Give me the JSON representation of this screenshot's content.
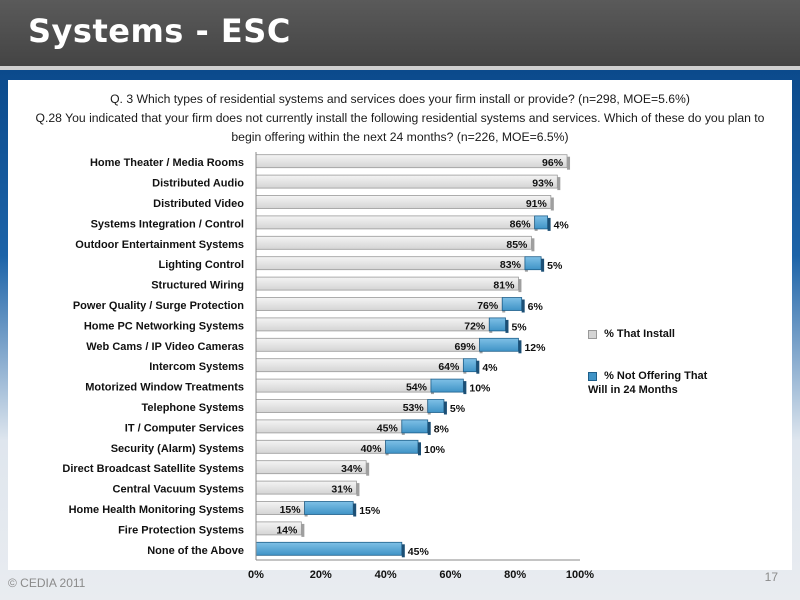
{
  "header": {
    "title": "Systems - ESC"
  },
  "questions": {
    "q3": "Q. 3 Which types of residential systems and services  does your firm install or provide? (n=298, MOE=5.6%)",
    "q28": "Q.28 You indicated that your firm does not currently install the following residential systems and services. Which of these do you plan to begin offering within the next 24 months? (n=226, MOE=6.5%)"
  },
  "footer": {
    "copyright": "© CEDIA 2011",
    "page": "17"
  },
  "colors": {
    "install": "#d4d4d4",
    "plan": "#3f93c6",
    "header": "#4a4a4a"
  },
  "chart_data": {
    "type": "bar",
    "orientation": "horizontal",
    "stacked": true,
    "categories": [
      "Home Theater / Media Rooms",
      "Distributed Audio",
      "Distributed Video",
      "Systems Integration / Control",
      "Outdoor Entertainment Systems",
      "Lighting Control",
      "Structured Wiring",
      "Power Quality / Surge Protection",
      "Home PC Networking Systems",
      "Web Cams / IP Video Cameras",
      "Intercom Systems",
      "Motorized Window Treatments",
      "Telephone Systems",
      "IT / Computer Services",
      "Security (Alarm) Systems",
      "Direct Broadcast Satellite Systems",
      "Central Vacuum Systems",
      "Home Health Monitoring Systems",
      "Fire Protection Systems",
      "None of the Above"
    ],
    "series": [
      {
        "name": "% That Install",
        "values": [
          96,
          93,
          91,
          86,
          85,
          83,
          81,
          76,
          72,
          69,
          64,
          54,
          53,
          45,
          40,
          34,
          31,
          15,
          14,
          0
        ]
      },
      {
        "name": "% Not Offering That Will in 24 Months",
        "values": [
          0,
          0,
          0,
          4,
          0,
          5,
          0,
          6,
          5,
          12,
          4,
          10,
          5,
          8,
          10,
          0,
          0,
          15,
          0,
          45
        ]
      }
    ],
    "xlim": [
      0,
      100
    ],
    "xticks": [
      "0%",
      "20%",
      "40%",
      "60%",
      "80%",
      "100%"
    ],
    "legend_position": "right"
  }
}
